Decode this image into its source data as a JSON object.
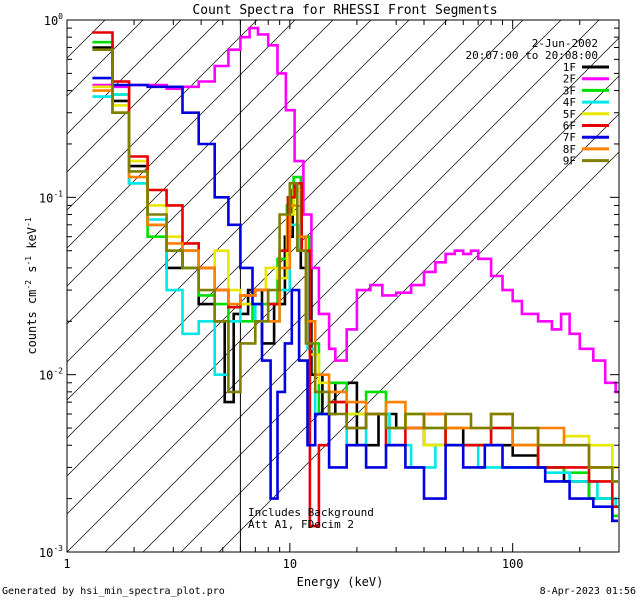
{
  "chart_data": {
    "type": "line",
    "title": "Count Spectra for RHESSI Front Segments",
    "xlabel": "Energy (keV)",
    "ylabel_parts": [
      "counts cm",
      "-2",
      " s",
      "-1",
      " keV",
      "-1"
    ],
    "xscale": "log",
    "yscale": "log",
    "xlim": [
      1,
      300
    ],
    "ylim": [
      0.001,
      1
    ],
    "x_ticks": [
      {
        "value": 1,
        "label": "1"
      },
      {
        "value": 10,
        "label": "10"
      },
      {
        "value": 100,
        "label": "100"
      }
    ],
    "y_ticks": [
      {
        "value": 0.001,
        "base": "10",
        "exp": "-3"
      },
      {
        "value": 0.01,
        "base": "10",
        "exp": "-2"
      },
      {
        "value": 0.1,
        "base": "10",
        "exp": "-1"
      },
      {
        "value": 1,
        "base": "10",
        "exp": "0"
      }
    ],
    "date": "2-Jun-2002",
    "time_range": "20:07:00 to 20:08:00",
    "hatched_region_below_keV": 6,
    "annotations": [
      "Includes Background",
      "Att A1, FDecim 2"
    ],
    "series": [
      {
        "name": "1F",
        "color": "#000000",
        "points": [
          [
            1.3,
            0.7
          ],
          [
            1.6,
            0.35
          ],
          [
            1.9,
            0.15
          ],
          [
            2.3,
            0.07
          ],
          [
            2.8,
            0.04
          ],
          [
            3.3,
            0.05
          ],
          [
            3.9,
            0.025
          ],
          [
            4.6,
            0.02
          ],
          [
            5.1,
            0.007
          ],
          [
            5.6,
            0.022
          ],
          [
            6.5,
            0.03
          ],
          [
            7.5,
            0.015
          ],
          [
            8.5,
            0.025
          ],
          [
            9.5,
            0.06
          ],
          [
            10.3,
            0.11
          ],
          [
            11.2,
            0.04
          ],
          [
            12.5,
            0.01
          ],
          [
            14,
            0.006
          ],
          [
            16,
            0.009
          ],
          [
            20,
            0.004
          ],
          [
            25,
            0.006
          ],
          [
            30,
            0.005
          ],
          [
            40,
            0.004
          ],
          [
            50,
            0.005
          ],
          [
            60,
            0.004
          ],
          [
            80,
            0.004
          ],
          [
            100,
            0.0035
          ],
          [
            130,
            0.003
          ],
          [
            170,
            0.0025
          ],
          [
            220,
            0.002
          ],
          [
            280,
            0.0015
          ]
        ]
      },
      {
        "name": "2F",
        "color": "#ff00ff",
        "points": [
          [
            1.3,
            0.43
          ],
          [
            1.6,
            0.42
          ],
          [
            1.9,
            0.43
          ],
          [
            2.3,
            0.43
          ],
          [
            2.8,
            0.41
          ],
          [
            3.3,
            0.42
          ],
          [
            3.9,
            0.45
          ],
          [
            4.6,
            0.55
          ],
          [
            5.3,
            0.68
          ],
          [
            6,
            0.8
          ],
          [
            6.6,
            0.9
          ],
          [
            7.2,
            0.83
          ],
          [
            8,
            0.72
          ],
          [
            8.8,
            0.5
          ],
          [
            9.6,
            0.31
          ],
          [
            10.5,
            0.16
          ],
          [
            11.5,
            0.08
          ],
          [
            12.5,
            0.04
          ],
          [
            13.5,
            0.022
          ],
          [
            15,
            0.014
          ],
          [
            16,
            0.012
          ],
          [
            18,
            0.018
          ],
          [
            20,
            0.03
          ],
          [
            23,
            0.032
          ],
          [
            26,
            0.028
          ],
          [
            30,
            0.029
          ],
          [
            35,
            0.032
          ],
          [
            40,
            0.038
          ],
          [
            45,
            0.043
          ],
          [
            50,
            0.048
          ],
          [
            55,
            0.05
          ],
          [
            60,
            0.048
          ],
          [
            65,
            0.05
          ],
          [
            70,
            0.045
          ],
          [
            80,
            0.036
          ],
          [
            90,
            0.03
          ],
          [
            100,
            0.026
          ],
          [
            110,
            0.022
          ],
          [
            130,
            0.02
          ],
          [
            150,
            0.018
          ],
          [
            165,
            0.022
          ],
          [
            180,
            0.017
          ],
          [
            200,
            0.014
          ],
          [
            230,
            0.012
          ],
          [
            260,
            0.009
          ],
          [
            290,
            0.008
          ]
        ]
      },
      {
        "name": "3F",
        "color": "#00e000",
        "points": [
          [
            1.3,
            0.75
          ],
          [
            1.6,
            0.38
          ],
          [
            1.9,
            0.12
          ],
          [
            2.3,
            0.06
          ],
          [
            2.8,
            0.05
          ],
          [
            3.3,
            0.04
          ],
          [
            3.9,
            0.028
          ],
          [
            4.6,
            0.025
          ],
          [
            5.3,
            0.02
          ],
          [
            6,
            0.02
          ],
          [
            6.8,
            0.025
          ],
          [
            7.8,
            0.025
          ],
          [
            8.8,
            0.045
          ],
          [
            9.7,
            0.09
          ],
          [
            10.4,
            0.13
          ],
          [
            11.2,
            0.06
          ],
          [
            12.2,
            0.015
          ],
          [
            13.5,
            0.006
          ],
          [
            15,
            0.009
          ],
          [
            18,
            0.006
          ],
          [
            22,
            0.008
          ],
          [
            27,
            0.005
          ],
          [
            33,
            0.006
          ],
          [
            40,
            0.005
          ],
          [
            50,
            0.004
          ],
          [
            65,
            0.004
          ],
          [
            80,
            0.005
          ],
          [
            100,
            0.004
          ],
          [
            130,
            0.003
          ],
          [
            170,
            0.0028
          ],
          [
            220,
            0.002
          ],
          [
            280,
            0.0016
          ]
        ]
      },
      {
        "name": "4F",
        "color": "#00e8e8",
        "points": [
          [
            1.3,
            0.37
          ],
          [
            1.6,
            0.38
          ],
          [
            1.9,
            0.12
          ],
          [
            2.3,
            0.075
          ],
          [
            2.8,
            0.03
          ],
          [
            3.3,
            0.017
          ],
          [
            3.9,
            0.02
          ],
          [
            4.6,
            0.01
          ],
          [
            5.3,
            0.02
          ],
          [
            6,
            0.025
          ],
          [
            7,
            0.02
          ],
          [
            8,
            0.02
          ],
          [
            9,
            0.03
          ],
          [
            10,
            0.07
          ],
          [
            11,
            0.05
          ],
          [
            12,
            0.014
          ],
          [
            13,
            0.006
          ],
          [
            15,
            0.007
          ],
          [
            18,
            0.004
          ],
          [
            22,
            0.006
          ],
          [
            28,
            0.004
          ],
          [
            35,
            0.003
          ],
          [
            45,
            0.004
          ],
          [
            55,
            0.004
          ],
          [
            70,
            0.003
          ],
          [
            90,
            0.003
          ],
          [
            110,
            0.003
          ],
          [
            140,
            0.0028
          ],
          [
            180,
            0.0025
          ],
          [
            240,
            0.002
          ],
          [
            290,
            0.0018
          ]
        ]
      },
      {
        "name": "5F",
        "color": "#e8e800",
        "points": [
          [
            1.3,
            0.42
          ],
          [
            1.6,
            0.33
          ],
          [
            1.9,
            0.16
          ],
          [
            2.3,
            0.09
          ],
          [
            2.8,
            0.06
          ],
          [
            3.3,
            0.05
          ],
          [
            3.9,
            0.04
          ],
          [
            4.6,
            0.05
          ],
          [
            5.3,
            0.03
          ],
          [
            6,
            0.025
          ],
          [
            6.8,
            0.03
          ],
          [
            7.8,
            0.04
          ],
          [
            8.8,
            0.035
          ],
          [
            9.7,
            0.08
          ],
          [
            10.4,
            0.11
          ],
          [
            11.3,
            0.05
          ],
          [
            12.3,
            0.013
          ],
          [
            13.5,
            0.009
          ],
          [
            15,
            0.007
          ],
          [
            18,
            0.006
          ],
          [
            22,
            0.006
          ],
          [
            27,
            0.005
          ],
          [
            33,
            0.006
          ],
          [
            40,
            0.004
          ],
          [
            50,
            0.005
          ],
          [
            65,
            0.005
          ],
          [
            80,
            0.006
          ],
          [
            100,
            0.005
          ],
          [
            130,
            0.004
          ],
          [
            170,
            0.0045
          ],
          [
            220,
            0.004
          ],
          [
            280,
            0.003
          ]
        ]
      },
      {
        "name": "6F",
        "color": "#e80000",
        "points": [
          [
            1.3,
            0.85
          ],
          [
            1.6,
            0.45
          ],
          [
            1.9,
            0.17
          ],
          [
            2.3,
            0.11
          ],
          [
            2.8,
            0.09
          ],
          [
            3.3,
            0.055
          ],
          [
            3.9,
            0.04
          ],
          [
            4.6,
            0.03
          ],
          [
            5.3,
            0.024
          ],
          [
            6,
            0.028
          ],
          [
            7,
            0.03
          ],
          [
            8,
            0.025
          ],
          [
            9,
            0.05
          ],
          [
            9.8,
            0.1
          ],
          [
            10.5,
            0.12
          ],
          [
            11.3,
            0.05
          ],
          [
            12.3,
            0.0014
          ],
          [
            13.5,
            0.004
          ],
          [
            15,
            0.007
          ],
          [
            18,
            0.005
          ],
          [
            22,
            0.006
          ],
          [
            27,
            0.004
          ],
          [
            33,
            0.005
          ],
          [
            40,
            0.006
          ],
          [
            50,
            0.004
          ],
          [
            65,
            0.004
          ],
          [
            80,
            0.005
          ],
          [
            100,
            0.004
          ],
          [
            130,
            0.003
          ],
          [
            170,
            0.003
          ],
          [
            220,
            0.0025
          ],
          [
            280,
            0.0018
          ]
        ]
      },
      {
        "name": "7F",
        "color": "#0000e0",
        "points": [
          [
            1.3,
            0.47
          ],
          [
            1.6,
            0.43
          ],
          [
            1.9,
            0.43
          ],
          [
            2.3,
            0.42
          ],
          [
            2.8,
            0.42
          ],
          [
            3.3,
            0.3
          ],
          [
            3.9,
            0.2
          ],
          [
            4.6,
            0.1
          ],
          [
            5.3,
            0.07
          ],
          [
            6,
            0.04
          ],
          [
            6.8,
            0.025
          ],
          [
            7.5,
            0.012
          ],
          [
            8.2,
            0.002
          ],
          [
            8.8,
            0.008
          ],
          [
            9.5,
            0.015
          ],
          [
            10.2,
            0.03
          ],
          [
            11,
            0.012
          ],
          [
            12,
            0.004
          ],
          [
            13,
            0.006
          ],
          [
            15,
            0.003
          ],
          [
            18,
            0.004
          ],
          [
            22,
            0.003
          ],
          [
            27,
            0.004
          ],
          [
            33,
            0.003
          ],
          [
            40,
            0.002
          ],
          [
            50,
            0.004
          ],
          [
            60,
            0.003
          ],
          [
            75,
            0.004
          ],
          [
            90,
            0.003
          ],
          [
            110,
            0.003
          ],
          [
            140,
            0.0025
          ],
          [
            180,
            0.002
          ],
          [
            230,
            0.0018
          ],
          [
            280,
            0.0015
          ]
        ]
      },
      {
        "name": "8F",
        "color": "#ff8000",
        "points": [
          [
            1.3,
            0.4
          ],
          [
            1.6,
            0.3
          ],
          [
            1.9,
            0.13
          ],
          [
            2.3,
            0.07
          ],
          [
            2.8,
            0.055
          ],
          [
            3.3,
            0.05
          ],
          [
            3.9,
            0.04
          ],
          [
            4.6,
            0.03
          ],
          [
            5.3,
            0.025
          ],
          [
            6,
            0.028
          ],
          [
            7,
            0.03
          ],
          [
            8,
            0.02
          ],
          [
            9,
            0.04
          ],
          [
            10,
            0.09
          ],
          [
            10.8,
            0.06
          ],
          [
            11.8,
            0.02
          ],
          [
            13,
            0.01
          ],
          [
            15,
            0.008
          ],
          [
            18,
            0.007
          ],
          [
            22,
            0.006
          ],
          [
            27,
            0.007
          ],
          [
            33,
            0.005
          ],
          [
            40,
            0.006
          ],
          [
            50,
            0.005
          ],
          [
            65,
            0.005
          ],
          [
            80,
            0.006
          ],
          [
            100,
            0.004
          ],
          [
            130,
            0.005
          ],
          [
            170,
            0.004
          ],
          [
            220,
            0.003
          ],
          [
            280,
            0.0025
          ]
        ]
      },
      {
        "name": "9F",
        "color": "#808000",
        "points": [
          [
            1.3,
            0.68
          ],
          [
            1.6,
            0.3
          ],
          [
            1.9,
            0.14
          ],
          [
            2.3,
            0.08
          ],
          [
            2.8,
            0.05
          ],
          [
            3.3,
            0.04
          ],
          [
            3.9,
            0.03
          ],
          [
            4.6,
            0.02
          ],
          [
            5.3,
            0.008
          ],
          [
            6,
            0.015
          ],
          [
            7,
            0.02
          ],
          [
            8,
            0.03
          ],
          [
            9,
            0.08
          ],
          [
            10,
            0.12
          ],
          [
            10.8,
            0.05
          ],
          [
            11.8,
            0.015
          ],
          [
            13,
            0.008
          ],
          [
            15,
            0.006
          ],
          [
            18,
            0.005
          ],
          [
            22,
            0.006
          ],
          [
            27,
            0.005
          ],
          [
            33,
            0.006
          ],
          [
            40,
            0.005
          ],
          [
            50,
            0.006
          ],
          [
            65,
            0.005
          ],
          [
            80,
            0.006
          ],
          [
            100,
            0.005
          ],
          [
            130,
            0.004
          ],
          [
            170,
            0.004
          ],
          [
            220,
            0.003
          ],
          [
            280,
            0.0025
          ]
        ]
      }
    ]
  },
  "footer": {
    "left": "Generated by hsi_min_spectra_plot.pro",
    "right": "8-Apr-2023 01:56"
  }
}
